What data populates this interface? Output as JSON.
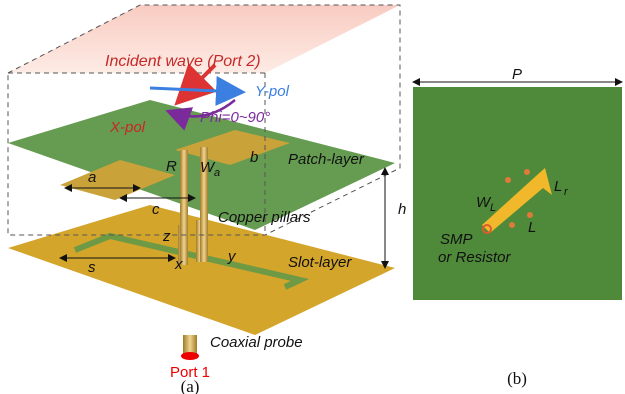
{
  "panel_a": {
    "incident": "Incident wave (Port 2)",
    "ypol": "Y-pol",
    "xpol": "X-pol",
    "phi": "Phi=0~90°",
    "r": "R",
    "wa_main": "W",
    "wa_sub": "a",
    "b": "b",
    "patch_layer": "Patch-layer",
    "a": "a",
    "c": "c",
    "h": "h",
    "copper": "Copper pillars",
    "z": "z",
    "x": "x",
    "y": "y",
    "s": "s",
    "slot_layer": "Slot-layer",
    "coax": "Coaxial probe",
    "port1": "Port 1",
    "caption": "(a)"
  },
  "panel_b": {
    "p": "P",
    "lr_main": "L",
    "lr_sub": "r",
    "wl_main": "W",
    "wl_sub": "L",
    "l": "L",
    "smp": "SMP",
    "resistor": "or Resistor",
    "caption": "(b)"
  }
}
